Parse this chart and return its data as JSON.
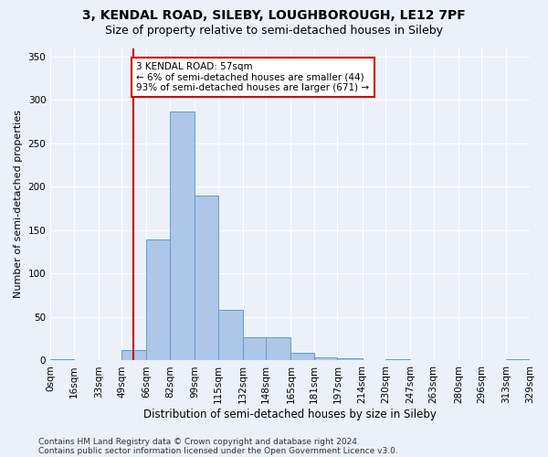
{
  "title_line1": "3, KENDAL ROAD, SILEBY, LOUGHBOROUGH, LE12 7PF",
  "title_line2": "Size of property relative to semi-detached houses in Sileby",
  "xlabel": "Distribution of semi-detached houses by size in Sileby",
  "ylabel": "Number of semi-detached properties",
  "bar_edges": [
    0,
    16,
    33,
    49,
    66,
    82,
    99,
    115,
    132,
    148,
    165,
    181,
    197,
    214,
    230,
    247,
    263,
    280,
    296,
    313,
    329
  ],
  "bar_heights": [
    2,
    0,
    0,
    12,
    139,
    287,
    190,
    58,
    27,
    27,
    9,
    4,
    3,
    0,
    2,
    0,
    0,
    0,
    0,
    2
  ],
  "bar_color": "#aec6e8",
  "bar_edge_color": "#5a9fd4",
  "property_value": 57,
  "vline_color": "#cc0000",
  "annotation_text": "3 KENDAL ROAD: 57sqm\n← 6% of semi-detached houses are smaller (44)\n93% of semi-detached houses are larger (671) →",
  "annotation_box_color": "#ffffff",
  "annotation_box_edge": "#cc0000",
  "background_color": "#ecf0f8",
  "grid_color": "#ffffff",
  "ylim": [
    0,
    360
  ],
  "tick_labels": [
    "0sqm",
    "16sqm",
    "33sqm",
    "49sqm",
    "66sqm",
    "82sqm",
    "99sqm",
    "115sqm",
    "132sqm",
    "148sqm",
    "165sqm",
    "181sqm",
    "197sqm",
    "214sqm",
    "230sqm",
    "247sqm",
    "263sqm",
    "280sqm",
    "296sqm",
    "313sqm",
    "329sqm"
  ],
  "footer_line1": "Contains HM Land Registry data © Crown copyright and database right 2024.",
  "footer_line2": "Contains public sector information licensed under the Open Government Licence v3.0.",
  "title_fontsize": 10,
  "subtitle_fontsize": 9,
  "axis_label_fontsize": 8.5,
  "tick_fontsize": 7.5,
  "annotation_fontsize": 7.5,
  "footer_fontsize": 6.5,
  "ylabel_fontsize": 8
}
